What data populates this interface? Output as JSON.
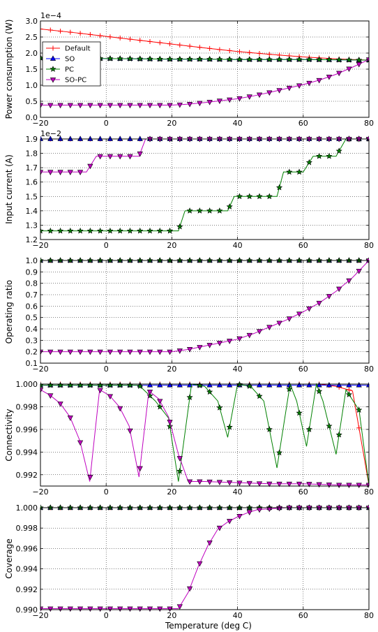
{
  "figure": {
    "xlabel": "Temperature (deg C)"
  },
  "legend": {
    "placement": "upper-left of first panel",
    "entries": [
      {
        "label": "Default",
        "color": "#ff0000",
        "marker": "plus"
      },
      {
        "label": "SO",
        "color": "#0000ff",
        "marker": "triangle-up"
      },
      {
        "label": "PC",
        "color": "#008000",
        "marker": "star"
      },
      {
        "label": "SO-PC",
        "color": "#bf00bf",
        "marker": "triangle-down"
      }
    ]
  },
  "chart_data": [
    {
      "type": "line",
      "title": "",
      "xlabel": "",
      "ylabel": "Power consumption (W)",
      "scale_label": "1e−4",
      "xlim": [
        -20,
        80
      ],
      "ylim": [
        0.0,
        3.0
      ],
      "xticks": [
        "−20",
        "0",
        "20",
        "40",
        "60",
        "80"
      ],
      "yticks": [
        "0.0",
        "0.5",
        "1.0",
        "1.5",
        "2.0",
        "2.5",
        "3.0"
      ],
      "ytick_values": [
        0.0,
        0.5,
        1.0,
        1.5,
        2.0,
        2.5,
        3.0
      ],
      "grid": true,
      "series": [
        {
          "name": "Default",
          "x": [
            -20,
            -10,
            0,
            10,
            20,
            30,
            40,
            50,
            60,
            70,
            80
          ],
          "y": [
            2.75,
            2.64,
            2.52,
            2.4,
            2.28,
            2.16,
            2.05,
            1.96,
            1.88,
            1.82,
            1.78
          ]
        },
        {
          "name": "SO",
          "x": [
            -20,
            -10,
            0,
            10,
            20,
            30,
            40,
            50,
            60,
            70,
            80
          ],
          "y": [
            1.85,
            1.84,
            1.83,
            1.82,
            1.81,
            1.81,
            1.8,
            1.8,
            1.8,
            1.79,
            1.78
          ]
        },
        {
          "name": "PC",
          "x": [
            -20,
            -10,
            0,
            10,
            20,
            30,
            40,
            50,
            60,
            70,
            80
          ],
          "y": [
            1.85,
            1.84,
            1.83,
            1.82,
            1.81,
            1.81,
            1.8,
            1.8,
            1.8,
            1.79,
            1.78
          ]
        },
        {
          "name": "SO-PC",
          "x": [
            -20,
            -10,
            0,
            10,
            20,
            25,
            30,
            35,
            40,
            45,
            50,
            55,
            60,
            65,
            70,
            75,
            80
          ],
          "y": [
            0.38,
            0.38,
            0.38,
            0.38,
            0.38,
            0.41,
            0.46,
            0.52,
            0.58,
            0.67,
            0.78,
            0.9,
            1.02,
            1.16,
            1.34,
            1.56,
            1.8
          ]
        }
      ]
    },
    {
      "type": "line",
      "title": "",
      "xlabel": "",
      "ylabel": "Input current (A)",
      "scale_label": "1e−2",
      "xlim": [
        -20,
        80
      ],
      "ylim": [
        1.2,
        1.9
      ],
      "xticks": [
        "−20",
        "0",
        "20",
        "40",
        "60",
        "80"
      ],
      "yticks": [
        "1.2",
        "1.3",
        "1.4",
        "1.5",
        "1.6",
        "1.7",
        "1.8",
        "1.9"
      ],
      "ytick_values": [
        1.2,
        1.3,
        1.4,
        1.5,
        1.6,
        1.7,
        1.8,
        1.9
      ],
      "grid": true,
      "series": [
        {
          "name": "Default",
          "x": [
            -20,
            80
          ],
          "y": [
            1.9,
            1.9
          ]
        },
        {
          "name": "SO",
          "x": [
            -20,
            80
          ],
          "y": [
            1.9,
            1.9
          ]
        },
        {
          "name": "PC",
          "x": [
            -20,
            22,
            24,
            37,
            39,
            52,
            54,
            60,
            63,
            70,
            73,
            80
          ],
          "y": [
            1.26,
            1.26,
            1.4,
            1.4,
            1.5,
            1.5,
            1.67,
            1.67,
            1.78,
            1.78,
            1.9,
            1.9
          ]
        },
        {
          "name": "SO-PC",
          "x": [
            -20,
            -6,
            -3,
            10,
            12,
            80
          ],
          "y": [
            1.67,
            1.67,
            1.78,
            1.78,
            1.9,
            1.9
          ]
        }
      ]
    },
    {
      "type": "line",
      "title": "",
      "xlabel": "",
      "ylabel": "Operating ratio",
      "xlim": [
        -20,
        80
      ],
      "ylim": [
        0.1,
        1.0
      ],
      "xticks": [
        "−20",
        "0",
        "20",
        "40",
        "60",
        "80"
      ],
      "yticks": [
        "0.1",
        "0.2",
        "0.3",
        "0.4",
        "0.5",
        "0.6",
        "0.7",
        "0.8",
        "0.9",
        "1.0"
      ],
      "ytick_values": [
        0.1,
        0.2,
        0.3,
        0.4,
        0.5,
        0.6,
        0.7,
        0.8,
        0.9,
        1.0
      ],
      "grid": true,
      "series": [
        {
          "name": "Default",
          "x": [
            -20,
            80
          ],
          "y": [
            1.0,
            1.0
          ]
        },
        {
          "name": "SO",
          "x": [
            -20,
            80
          ],
          "y": [
            1.0,
            1.0
          ]
        },
        {
          "name": "PC",
          "x": [
            -20,
            80
          ],
          "y": [
            1.0,
            1.0
          ]
        },
        {
          "name": "SO-PC",
          "x": [
            -20,
            -10,
            0,
            10,
            20,
            25,
            30,
            35,
            40,
            45,
            50,
            55,
            60,
            65,
            70,
            75,
            80
          ],
          "y": [
            0.2,
            0.2,
            0.2,
            0.2,
            0.2,
            0.22,
            0.25,
            0.28,
            0.31,
            0.36,
            0.42,
            0.48,
            0.55,
            0.63,
            0.73,
            0.85,
            1.0
          ]
        }
      ]
    },
    {
      "type": "line",
      "title": "",
      "xlabel": "",
      "ylabel": "Connectivity",
      "xlim": [
        -20,
        80
      ],
      "ylim": [
        0.991,
        1.0
      ],
      "xticks": [
        "−20",
        "0",
        "20",
        "40",
        "60",
        "80"
      ],
      "yticks": [
        "0.992",
        "0.994",
        "0.996",
        "0.998",
        "1.000"
      ],
      "ytick_values": [
        0.992,
        0.994,
        0.996,
        0.998,
        1.0
      ],
      "grid": true,
      "series": [
        {
          "name": "Default",
          "x": [
            -20,
            65,
            70,
            75,
            80
          ],
          "y": [
            1.0,
            1.0,
            0.9998,
            0.9994,
            0.9911
          ]
        },
        {
          "name": "SO",
          "x": [
            -20,
            80
          ],
          "y": [
            0.9999,
            0.9999
          ]
        },
        {
          "name": "PC",
          "x": [
            -20,
            10,
            15,
            19,
            22,
            26,
            30,
            34,
            37,
            40,
            44,
            48,
            52,
            56,
            58,
            61,
            64,
            66,
            70,
            73,
            77,
            80
          ],
          "y": [
            0.9999,
            0.9999,
            0.9985,
            0.997,
            0.9914,
            1.0,
            0.9998,
            0.9985,
            0.9953,
            1.0,
            0.9998,
            0.9985,
            0.9926,
            1.0,
            0.9985,
            0.9945,
            1.0,
            0.9985,
            0.9938,
            0.9995,
            0.9977,
            0.9911
          ]
        },
        {
          "name": "SO-PC",
          "x": [
            -20,
            -17,
            -14,
            -11,
            -8,
            -5,
            -2,
            1,
            4,
            7,
            10,
            13,
            16,
            19,
            22,
            25,
            30,
            40,
            50,
            60,
            70,
            80
          ],
          "y": [
            0.9995,
            0.999,
            0.9983,
            0.9971,
            0.995,
            0.9914,
            0.9995,
            0.999,
            0.998,
            0.9963,
            0.9918,
            0.9994,
            0.9987,
            0.9971,
            0.9938,
            0.9914,
            0.9914,
            0.9913,
            0.9912,
            0.9912,
            0.9911,
            0.9911
          ]
        }
      ]
    },
    {
      "type": "line",
      "title": "",
      "xlabel": "Temperature (deg C)",
      "ylabel": "Coverage",
      "xlim": [
        -20,
        80
      ],
      "ylim": [
        0.99,
        1.0
      ],
      "xticks": [
        "−20",
        "0",
        "20",
        "40",
        "60",
        "80"
      ],
      "yticks": [
        "0.990",
        "0.992",
        "0.994",
        "0.996",
        "0.998",
        "1.000"
      ],
      "ytick_values": [
        0.99,
        0.992,
        0.994,
        0.996,
        0.998,
        1.0
      ],
      "grid": true,
      "series": [
        {
          "name": "Default",
          "x": [
            -20,
            80
          ],
          "y": [
            1.0,
            1.0
          ]
        },
        {
          "name": "SO",
          "x": [
            -20,
            80
          ],
          "y": [
            1.0,
            1.0
          ]
        },
        {
          "name": "PC",
          "x": [
            -20,
            80
          ],
          "y": [
            1.0,
            1.0
          ]
        },
        {
          "name": "SO-PC",
          "x": [
            -20,
            0,
            20,
            22,
            25,
            28,
            31,
            34,
            37,
            40,
            43,
            46,
            50,
            55,
            60,
            80
          ],
          "y": [
            0.9901,
            0.9901,
            0.9901,
            0.9901,
            0.9917,
            0.9942,
            0.9963,
            0.9979,
            0.9986,
            0.9991,
            0.9995,
            0.9998,
            0.9999,
            1.0,
            1.0,
            1.0
          ]
        }
      ]
    }
  ]
}
